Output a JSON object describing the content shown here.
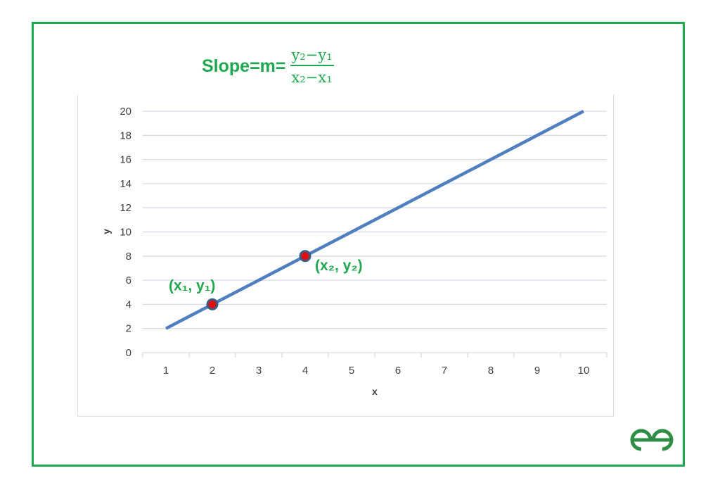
{
  "formula": {
    "lhs": "Slope=m=",
    "numerator": "y₂−y₁",
    "denominator": "x₂−x₁"
  },
  "colors": {
    "accent": "#1fa84f",
    "line": "#4f7fbf",
    "point_fill": "#e01010",
    "grid": "#d6dce6"
  },
  "logo": "GfG",
  "chart_data": {
    "type": "line",
    "title": "Slope=m= (y₂−y₁)/(x₂−x₁)",
    "xlabel": "x",
    "ylabel": "y",
    "categories": [
      "1",
      "2",
      "3",
      "4",
      "5",
      "6",
      "7",
      "8",
      "9",
      "10"
    ],
    "x": [
      1,
      2,
      3,
      4,
      5,
      6,
      7,
      8,
      9,
      10
    ],
    "values": [
      2,
      4,
      6,
      8,
      10,
      12,
      14,
      16,
      18,
      20
    ],
    "ylim": [
      0,
      20
    ],
    "yticks": [
      0,
      2,
      4,
      6,
      8,
      10,
      12,
      14,
      16,
      18,
      20
    ],
    "grid": "horizontal",
    "highlighted_points": [
      {
        "x": 2,
        "y": 4,
        "label": "(x₁, y₁)"
      },
      {
        "x": 4,
        "y": 8,
        "label": "(x₂, y₂)"
      }
    ]
  }
}
